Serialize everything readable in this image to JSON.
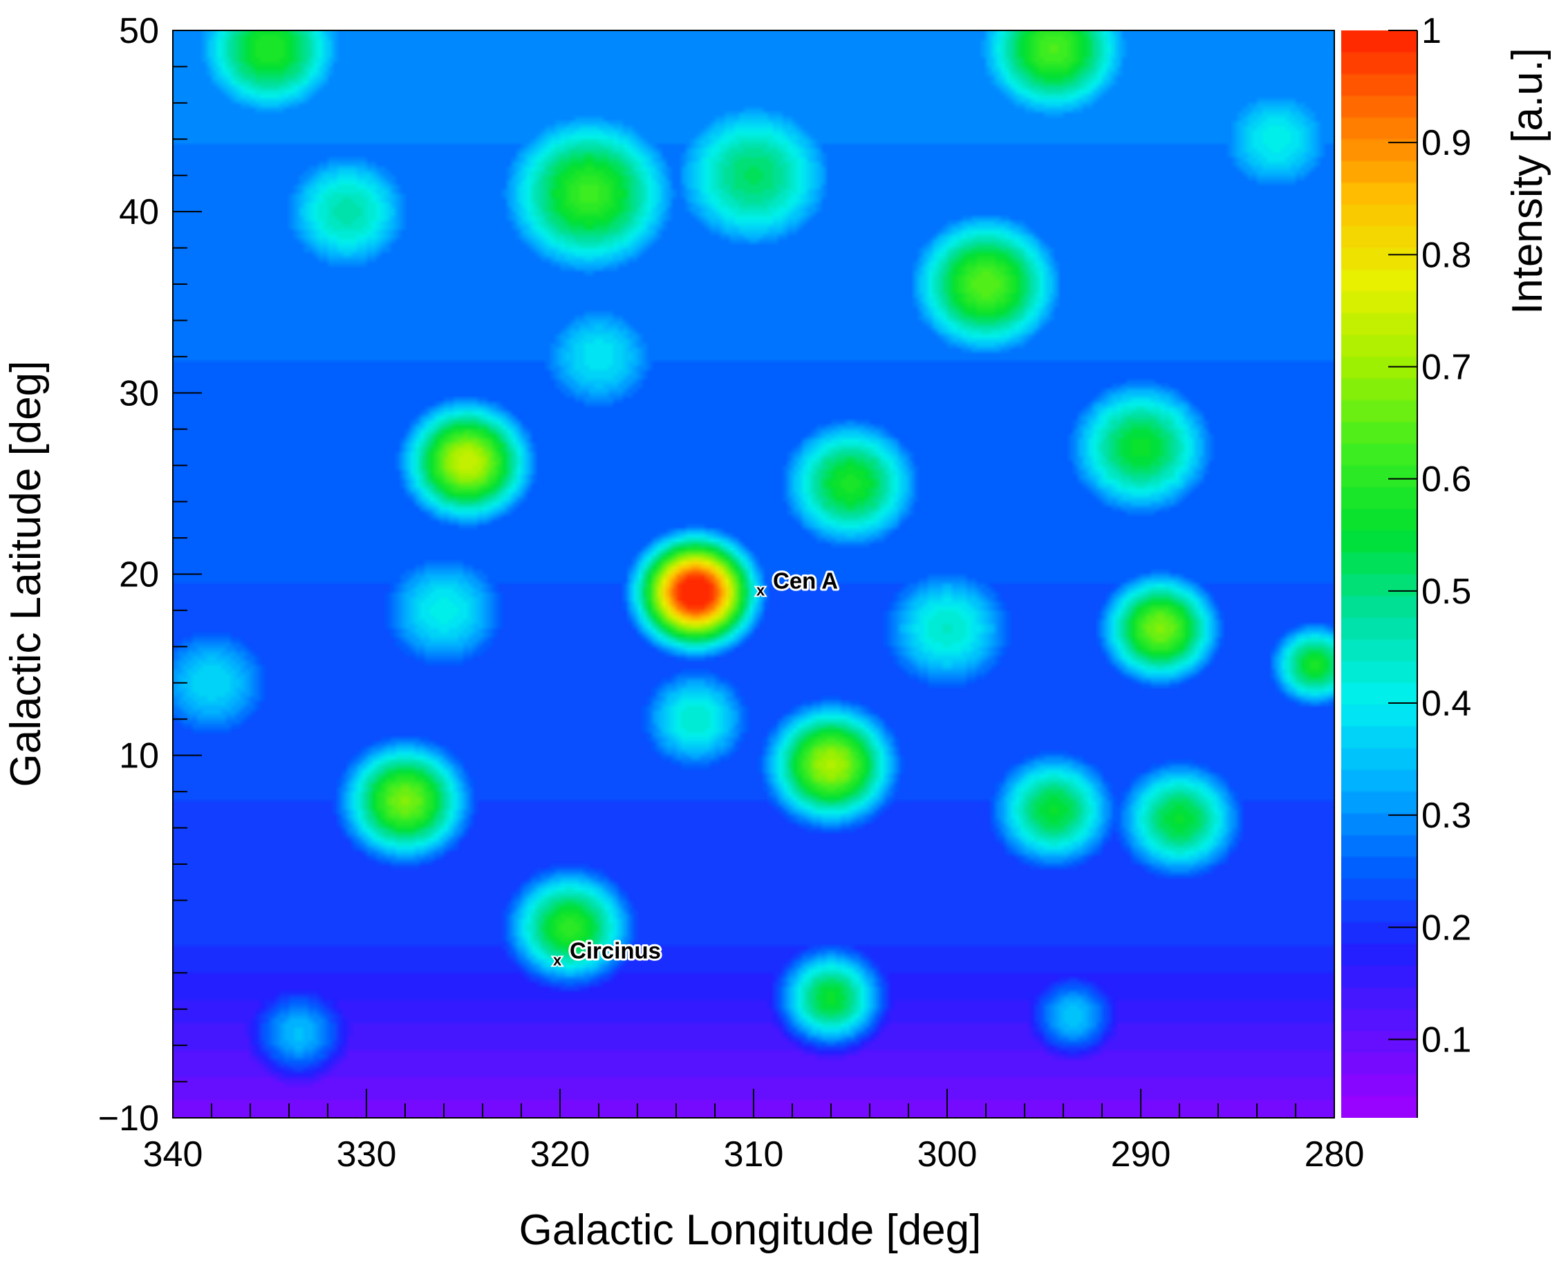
{
  "chart_data": {
    "type": "heatmap",
    "xlabel": "Galactic Longitude [deg]",
    "ylabel": "Galactic Latitude [deg]",
    "zlabel": "Intensity [a.u.]",
    "xlim": [
      340,
      280
    ],
    "ylim": [
      -10,
      50
    ],
    "zlim": [
      0.03,
      1
    ],
    "x_ticks": [
      340,
      330,
      320,
      310,
      300,
      290,
      280
    ],
    "y_ticks": [
      50,
      40,
      30,
      20,
      10,
      -10
    ],
    "x_tick_labels": [
      "340",
      "330",
      "320",
      "310",
      "300",
      "290",
      "280"
    ],
    "y_tick_labels": [
      "50",
      "40",
      "30",
      "20",
      "10",
      "−10"
    ],
    "z_ticks": [
      1,
      0.9,
      0.8,
      0.7,
      0.6,
      0.5,
      0.4,
      0.3,
      0.2,
      0.1
    ],
    "z_tick_labels": [
      "1",
      "0.9",
      "0.8",
      "0.7",
      "0.6",
      "0.5",
      "0.4",
      "0.3",
      "0.2",
      "0.1"
    ],
    "annotations": [
      {
        "label": "Cen A",
        "marker": "x",
        "l": 309.5,
        "b": 19.2
      },
      {
        "label": "Circinus",
        "marker": "x",
        "l": 320.0,
        "b": -1.2
      }
    ],
    "hotspots": [
      {
        "l": 313.0,
        "b": 19.0,
        "amp": 1.0,
        "sigma": 2.2
      },
      {
        "l": 324.8,
        "b": 26.2,
        "amp": 0.68,
        "sigma": 2.5
      },
      {
        "l": 328.0,
        "b": 7.5,
        "amp": 0.62,
        "sigma": 2.5
      },
      {
        "l": 306.0,
        "b": 9.5,
        "amp": 0.66,
        "sigma": 2.5
      },
      {
        "l": 289.0,
        "b": 17.0,
        "amp": 0.62,
        "sigma": 2.3
      },
      {
        "l": 319.5,
        "b": 0.5,
        "amp": 0.55,
        "sigma": 2.5
      },
      {
        "l": 306.0,
        "b": -3.5,
        "amp": 0.55,
        "sigma": 2.2
      },
      {
        "l": 298.0,
        "b": 36.0,
        "amp": 0.58,
        "sigma": 3.0
      },
      {
        "l": 294.5,
        "b": 49.0,
        "amp": 0.56,
        "sigma": 3.0
      },
      {
        "l": 318.5,
        "b": 41.0,
        "amp": 0.55,
        "sigma": 3.5
      },
      {
        "l": 335.0,
        "b": 49.0,
        "amp": 0.52,
        "sigma": 3.0
      },
      {
        "l": 305.0,
        "b": 25.0,
        "amp": 0.52,
        "sigma": 2.8
      },
      {
        "l": 294.5,
        "b": 7.0,
        "amp": 0.5,
        "sigma": 2.5
      },
      {
        "l": 288.0,
        "b": 6.5,
        "amp": 0.5,
        "sigma": 2.5
      },
      {
        "l": 281.0,
        "b": 15.0,
        "amp": 0.52,
        "sigma": 1.8
      },
      {
        "l": 290.0,
        "b": 27.0,
        "amp": 0.5,
        "sigma": 3.0
      },
      {
        "l": 310.0,
        "b": 42.0,
        "amp": 0.45,
        "sigma": 3.5
      },
      {
        "l": 331.0,
        "b": 40.0,
        "amp": 0.4,
        "sigma": 3.0
      },
      {
        "l": 326.0,
        "b": 18.0,
        "amp": 0.35,
        "sigma": 3.0
      },
      {
        "l": 300.0,
        "b": 17.0,
        "amp": 0.38,
        "sigma": 3.0
      },
      {
        "l": 313.0,
        "b": 12.0,
        "amp": 0.38,
        "sigma": 2.5
      },
      {
        "l": 333.5,
        "b": -5.5,
        "amp": 0.36,
        "sigma": 2.3
      },
      {
        "l": 293.5,
        "b": -4.5,
        "amp": 0.36,
        "sigma": 2.0
      },
      {
        "l": 338.0,
        "b": 14.0,
        "amp": 0.32,
        "sigma": 3.0
      },
      {
        "l": 318.0,
        "b": 32.0,
        "amp": 0.33,
        "sigma": 3.0
      },
      {
        "l": 283.0,
        "b": 44.0,
        "amp": 0.34,
        "sigma": 3.0
      }
    ],
    "baseline": 0.22,
    "lat_gradient": 0.0016,
    "low_level": 0.05,
    "colors": [
      "#a000ff",
      "#6010ff",
      "#2020ff",
      "#0060ff",
      "#00b0ff",
      "#00f0f0",
      "#00e0a0",
      "#00e030",
      "#40ee20",
      "#a0f000",
      "#e8f000",
      "#ffc000",
      "#ff7000",
      "#ff2000"
    ]
  }
}
